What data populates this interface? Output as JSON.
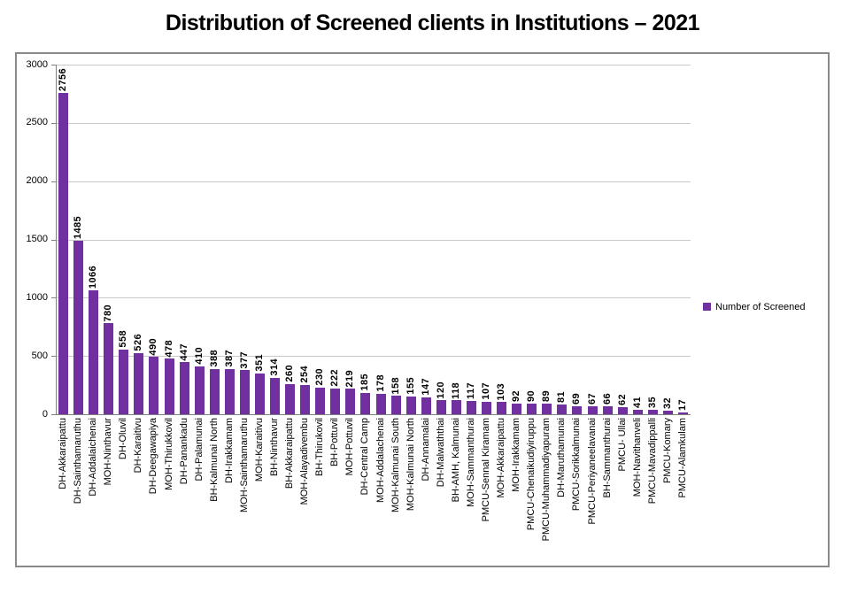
{
  "chart_data": {
    "type": "bar",
    "title": "Distribution of Screened clients in Institutions – 2021",
    "series_name": "Number of Screened",
    "categories": [
      "DH-Akkaraipattu",
      "DH-Sainthamaruthu",
      "DH-Addalaichenai",
      "MOH-Ninthavur",
      "DH-Oluvil",
      "DH-Karaitivu",
      "DH-Deegawapiya",
      "MOH-Thirukkovil",
      "DH-Panankadu",
      "DH-Palamunai",
      "BH-Kalmunai North",
      "DH-Irakkamam",
      "MOH-Sainthamaruthu",
      "MOH-Karaitivu",
      "BH-Ninthavur",
      "BH-Akkaraipattu",
      "MOH-Alayadivembu",
      "BH-Thirukovil",
      "BH-Pottuvil",
      "MOH-Pottuvil",
      "DH-Central Camp",
      "MOH-Addalachenai",
      "MOH-Kalmunai South",
      "MOH-Kalmunai North",
      "DH-Annamalai",
      "DH-Malwaththai",
      "BH-AMH, Kalmunai",
      "MOH-Sammanthurai",
      "PMCU-Sennal Kiramam",
      "MOH-Akkaraipattu",
      "MOH-Irakkamam",
      "PMCU-Chenaikudiyiruppu",
      "PMCU-Muhammadiyapuram",
      "DH-Maruthamunai",
      "PMCU-Sorikkalmunai",
      "PMCU-Periyaneelavanai",
      "BH-Sammanthurai",
      "PMCU- Ullai",
      "MOH-Navithanveli",
      "PMCU-Mavadippalli",
      "PMCU-Komary",
      "PMCU-Alamkulam"
    ],
    "values": [
      2756,
      1485,
      1066,
      780,
      558,
      526,
      490,
      478,
      447,
      410,
      388,
      387,
      377,
      351,
      314,
      260,
      254,
      230,
      222,
      219,
      185,
      178,
      158,
      155,
      147,
      120,
      118,
      117,
      107,
      103,
      92,
      90,
      89,
      81,
      69,
      67,
      66,
      62,
      41,
      35,
      32,
      17
    ],
    "data_labels": true,
    "xlabel": "",
    "ylabel": "",
    "ylim": [
      0,
      3000
    ],
    "yticks": [
      0,
      500,
      1000,
      1500,
      2000,
      2500,
      3000
    ],
    "grid": true,
    "legend_position": "right",
    "bar_color": "#7030A0"
  },
  "colors": {
    "bar": "#7030A0",
    "gridline": "#c9c9c9",
    "axis": "#808080",
    "frame_border": "#8a8a8a",
    "text": "#000000",
    "background": "#ffffff"
  }
}
